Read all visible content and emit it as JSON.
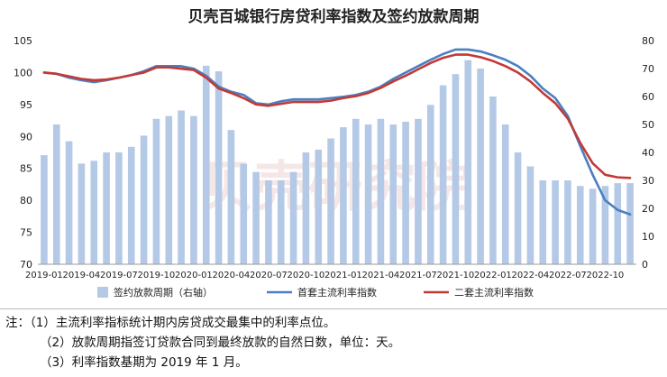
{
  "chart_data": {
    "type": "bar+line",
    "title": "贝壳百城银行房贷利率指数及签约放款周期",
    "x_tick_labels": [
      "2019-01",
      "2019-04",
      "2019-07",
      "2019-10",
      "2020-01",
      "2020-04",
      "2020-07",
      "2020-10",
      "2021-01",
      "2021-04",
      "2021-07",
      "2021-10",
      "2022-01",
      "2022-04",
      "2022-07",
      "2022-10"
    ],
    "x": [
      "2019-01",
      "2019-02",
      "2019-03",
      "2019-04",
      "2019-05",
      "2019-06",
      "2019-07",
      "2019-08",
      "2019-09",
      "2019-10",
      "2019-11",
      "2019-12",
      "2020-01",
      "2020-02",
      "2020-03",
      "2020-04",
      "2020-05",
      "2020-06",
      "2020-07",
      "2020-08",
      "2020-09",
      "2020-10",
      "2020-11",
      "2020-12",
      "2021-01",
      "2021-02",
      "2021-03",
      "2021-04",
      "2021-05",
      "2021-06",
      "2021-07",
      "2021-08",
      "2021-09",
      "2021-10",
      "2021-11",
      "2021-12",
      "2022-01",
      "2022-02",
      "2022-03",
      "2022-04",
      "2022-05",
      "2022-06",
      "2022-07",
      "2022-08",
      "2022-09",
      "2022-10",
      "2022-11",
      "2022-12"
    ],
    "left_axis": {
      "min": 70,
      "max": 105,
      "ticks": [
        70,
        75,
        80,
        85,
        90,
        95,
        100,
        105
      ]
    },
    "right_axis": {
      "min": 0,
      "max": 80,
      "ticks": [
        0,
        10,
        20,
        30,
        40,
        50,
        60,
        70,
        80
      ]
    },
    "series": [
      {
        "name": "签约放款周期（右轴）",
        "kind": "bar",
        "axis": "right",
        "color": "#b4c9e6",
        "values": [
          39,
          50,
          44,
          36,
          37,
          40,
          40,
          42,
          46,
          52,
          53,
          55,
          53,
          71,
          69,
          48,
          36,
          33,
          30,
          30,
          33,
          40,
          41,
          45,
          49,
          52,
          50,
          52,
          50,
          51,
          52,
          57,
          64,
          68,
          73,
          70,
          60,
          50,
          40,
          35,
          30,
          30,
          30,
          28,
          27,
          28,
          29,
          29
        ]
      },
      {
        "name": "首套主流利率指数",
        "kind": "line",
        "axis": "left",
        "color": "#4a7fc1",
        "values": [
          100,
          99.8,
          99.2,
          98.8,
          98.5,
          98.8,
          99.2,
          99.6,
          100.2,
          101.0,
          101.0,
          101.0,
          100.6,
          99.5,
          97.8,
          97.0,
          96.5,
          95.2,
          95.0,
          95.5,
          95.8,
          95.8,
          95.8,
          96.0,
          96.2,
          96.5,
          97.0,
          97.8,
          99.0,
          100.0,
          101.0,
          102.0,
          102.9,
          103.6,
          103.6,
          103.3,
          102.7,
          102.0,
          101.0,
          99.5,
          97.5,
          96.0,
          93.2,
          88.5,
          84.0,
          80.0,
          78.5,
          77.8
        ]
      },
      {
        "name": "二套主流利率指数",
        "kind": "line",
        "axis": "left",
        "color": "#c23a35",
        "values": [
          100,
          99.8,
          99.4,
          99.0,
          98.8,
          98.9,
          99.2,
          99.6,
          100.0,
          100.8,
          100.8,
          100.6,
          100.4,
          99.2,
          97.5,
          96.8,
          96.0,
          95.0,
          94.8,
          95.1,
          95.4,
          95.4,
          95.4,
          95.6,
          96.0,
          96.3,
          96.8,
          97.6,
          98.6,
          99.5,
          100.5,
          101.5,
          102.3,
          102.8,
          102.8,
          102.4,
          101.8,
          101.0,
          100.0,
          98.6,
          96.8,
          95.2,
          92.8,
          89.0,
          85.8,
          84.0,
          83.6,
          83.5
        ]
      }
    ],
    "watermark": "贝壳研究院"
  },
  "notes": [
    "注：（1）主流利率指标统计期内房贷成交最集中的利率点位。",
    "（2）放款周期指签订贷款合同到最终放款的自然日数，单位：天。",
    "（3）利率指数基期为 2019 年 1 月。"
  ]
}
